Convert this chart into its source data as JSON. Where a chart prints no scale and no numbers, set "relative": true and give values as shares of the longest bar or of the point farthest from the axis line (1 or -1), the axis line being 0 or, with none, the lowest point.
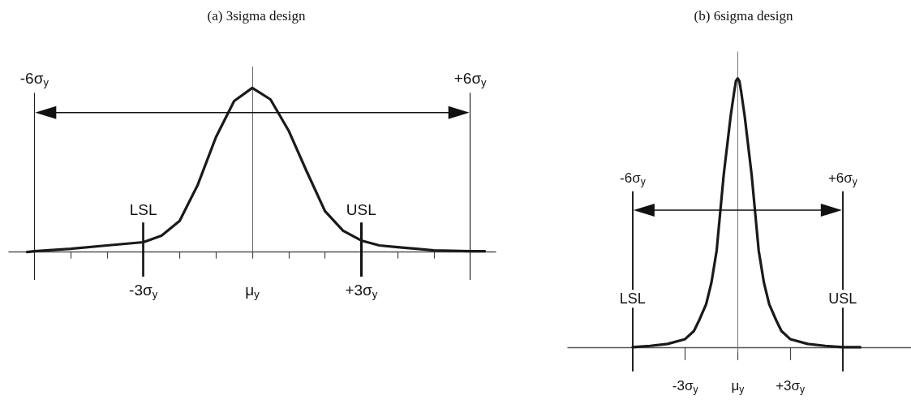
{
  "chart_data": [
    {
      "type": "line",
      "title": "(a) 3sigma design",
      "relative": true,
      "marker": "none",
      "line_style": "solid",
      "x": [
        -6.2,
        -6,
        -5,
        -4,
        -3,
        -2.5,
        -2,
        -1.5,
        -1,
        -0.5,
        0,
        0.5,
        1,
        1.5,
        2,
        2.5,
        3,
        3.5,
        4,
        5,
        6,
        6.4
      ],
      "series": [
        {
          "color": "#1a1a1a",
          "values": [
            0,
            0.005,
            0.02,
            0.04,
            0.06,
            0.1,
            0.19,
            0.41,
            0.7,
            0.92,
            1,
            0.93,
            0.74,
            0.49,
            0.25,
            0.13,
            0.07,
            0.04,
            0.03,
            0.01,
            0.005,
            0.005
          ]
        }
      ],
      "xlim": [
        -6.7,
        6.7
      ],
      "xticks": [
        {
          "value": -5,
          "label": null
        },
        {
          "value": -4,
          "label": null
        },
        {
          "value": -3,
          "label": "-3σ$_{y}$"
        },
        {
          "value": -2,
          "label": null
        },
        {
          "value": -1,
          "label": null
        },
        {
          "value": 0,
          "label": "μ$_{y}$"
        },
        {
          "value": 1,
          "label": null
        },
        {
          "value": 2,
          "label": null
        },
        {
          "value": 3,
          "label": "+3σ$_{y}$"
        },
        {
          "value": 4,
          "label": null
        },
        {
          "value": 5,
          "label": null
        }
      ],
      "tick_labels": "x",
      "ref_lines": [
        {
          "axis": "x",
          "value": -6,
          "label": "-6σ$_{y}$",
          "color": "#222222"
        },
        {
          "axis": "x",
          "value": 6,
          "label": "+6σ$_{y}$",
          "color": "#222222"
        },
        {
          "axis": "x",
          "value": 0,
          "label": null,
          "color": "#666666"
        },
        {
          "axis": "x",
          "value": -3,
          "label": "LSL",
          "color": "#111111"
        },
        {
          "axis": "x",
          "value": 3,
          "label": "USL",
          "color": "#111111"
        }
      ]
    },
    {
      "type": "line",
      "title": "(b) 6sigma design",
      "relative": true,
      "marker": "none",
      "line_style": "solid",
      "x": [
        -6,
        -5,
        -4,
        -3,
        -2.5,
        -2.2,
        -1.8,
        -1.5,
        -1.2,
        -0.8,
        -0.4,
        -0.2,
        -0.1,
        0,
        0.1,
        0.2,
        0.4,
        0.8,
        1.2,
        1.5,
        1.8,
        2.2,
        2.5,
        3,
        4,
        5,
        6,
        7
      ],
      "series": [
        {
          "color": "#1a1a1a",
          "values": [
            0,
            0.005,
            0.012,
            0.03,
            0.06,
            0.1,
            0.16,
            0.24,
            0.36,
            0.64,
            0.86,
            0.95,
            0.99,
            1,
            0.99,
            0.95,
            0.86,
            0.64,
            0.36,
            0.24,
            0.16,
            0.1,
            0.06,
            0.03,
            0.012,
            0.005,
            0,
            0
          ]
        }
      ],
      "xlim": [
        -9.7,
        9.9
      ],
      "xticks": [
        {
          "value": -3,
          "label": "-3σ$_{y}$"
        },
        {
          "value": 0,
          "label": "μ$_{y}$"
        },
        {
          "value": 3,
          "label": "+3σ$_{y}$"
        }
      ],
      "tick_labels": "x",
      "ref_lines": [
        {
          "axis": "x",
          "value": -6,
          "label": "-6σ$_{y}$",
          "color": "#222222"
        },
        {
          "axis": "x",
          "value": 6,
          "label": "+6σ$_{y}$",
          "color": "#222222"
        },
        {
          "axis": "x",
          "value": 0,
          "label": null,
          "color": "#777777"
        }
      ],
      "annotations": [
        {
          "text": "LSL",
          "x": -6,
          "y": 0.18
        },
        {
          "text": "USL",
          "x": 6,
          "y": 0.18
        }
      ]
    }
  ]
}
